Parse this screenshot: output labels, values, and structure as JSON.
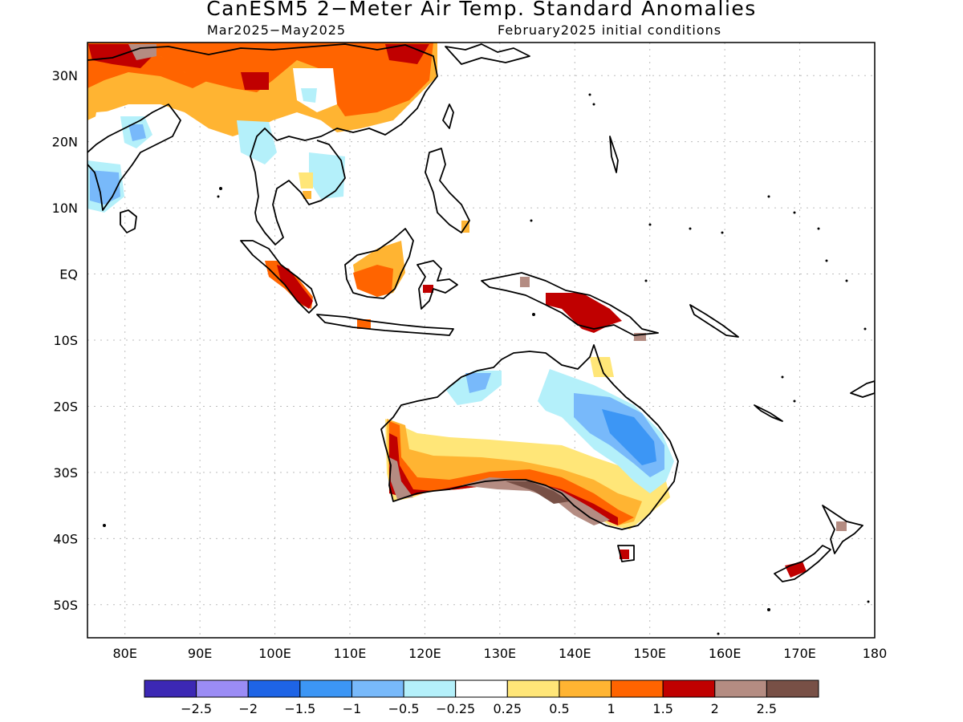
{
  "title": "CanESM5 2−Meter Air Temp. Standard Anomalies",
  "subtitle_left": "Mar2025−May2025",
  "subtitle_right": "February2025 initial conditions",
  "map": {
    "lon_range": [
      75,
      180
    ],
    "lat_range": [
      -55,
      35
    ],
    "lat_ticks": [
      {
        "v": 30,
        "label": "30N"
      },
      {
        "v": 20,
        "label": "20N"
      },
      {
        "v": 10,
        "label": "10N"
      },
      {
        "v": 0,
        "label": "EQ"
      },
      {
        "v": -10,
        "label": "10S"
      },
      {
        "v": -20,
        "label": "20S"
      },
      {
        "v": -30,
        "label": "30S"
      },
      {
        "v": -40,
        "label": "40S"
      },
      {
        "v": -50,
        "label": "50S"
      }
    ],
    "lon_ticks": [
      {
        "v": 80,
        "label": "80E"
      },
      {
        "v": 90,
        "label": "90E"
      },
      {
        "v": 100,
        "label": "100E"
      },
      {
        "v": 110,
        "label": "110E"
      },
      {
        "v": 120,
        "label": "120E"
      },
      {
        "v": 130,
        "label": "130E"
      },
      {
        "v": 140,
        "label": "140E"
      },
      {
        "v": 150,
        "label": "150E"
      },
      {
        "v": 160,
        "label": "160E"
      },
      {
        "v": 170,
        "label": "170E"
      },
      {
        "v": 180,
        "label": "180"
      }
    ]
  },
  "colorbar": {
    "colors": [
      "#3c28b4",
      "#9b8cf5",
      "#1e64e6",
      "#3c96f5",
      "#78b9fa",
      "#b4f0fa",
      "#ffffff",
      "#ffe678",
      "#ffb432",
      "#ff6400",
      "#c00000",
      "#b48c82",
      "#785046"
    ],
    "labels": [
      "−2.5",
      "−2",
      "−1.5",
      "−1",
      "−0.5",
      "−0.25",
      "0.25",
      "0.5",
      "1",
      "1.5",
      "2",
      "2.5"
    ]
  }
}
